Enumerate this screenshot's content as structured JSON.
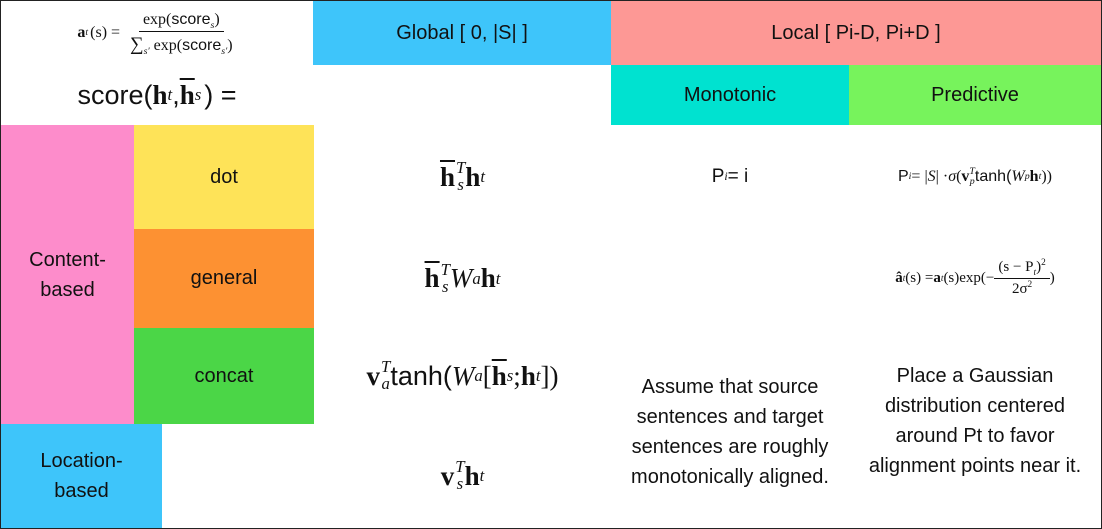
{
  "colors": {
    "global": "#3ec5fa",
    "local": "#fd9895",
    "monotonic": "#00e2d0",
    "predictive": "#77f35c",
    "content": "#fd8ccb",
    "dot": "#fee358",
    "general": "#fd9132",
    "concat": "#4bd647",
    "location": "#3ec5fa"
  },
  "header": {
    "global": "Global [ 0, |S| ]",
    "local": "Local [ Pi-D, Pi+D ]",
    "monotonic": "Monotonic",
    "predictive": "Predictive"
  },
  "formula_topleft": {
    "lhs_a": "a",
    "lhs_sub": "t",
    "lhs_arg": "(s) =",
    "num_exp": "exp(",
    "num_score": "score",
    "num_sub": "s",
    "num_close": ")",
    "den_sum": "∑",
    "den_sum_sub": "s′",
    "den_exp": " exp(",
    "den_score": "score",
    "den_sub": "s′",
    "den_close": ")"
  },
  "score_label": {
    "fn": "score(",
    "h": "h",
    "h_sub": "t",
    "comma": ", ",
    "hbar": "h",
    "hbar_sub": "s",
    "close": ") ="
  },
  "row_groups": {
    "content": "Content-\nbased",
    "location": "Location-\nbased"
  },
  "methods": {
    "dot": "dot",
    "general": "general",
    "concat": "concat"
  },
  "score_formulas": {
    "dot": {
      "hbar": "h",
      "s": "s",
      "T": "T",
      "h": "h",
      "t": "t"
    },
    "general": {
      "hbar": "h",
      "s": "s",
      "T": "T",
      "W": "W",
      "a": "a",
      "h": "h",
      "t": "t"
    },
    "concat": {
      "v": "v",
      "a": "a",
      "T": "T",
      "tanh": "tanh(",
      "W": "W",
      "wa": "a",
      "br": "[",
      "hbar": "h",
      "s": "s",
      "semi": "; ",
      "h": "h",
      "t": "t",
      "close": "])"
    },
    "location": {
      "v": "v",
      "s": "s",
      "T": "T",
      "h": "h",
      "t": "t"
    }
  },
  "monotonic_formula": {
    "P": "P",
    "i_sub": "i",
    "eq": " = i"
  },
  "predictive_formula": {
    "P": "P",
    "i_sub": "i",
    "eq": " = | ",
    "S": "S",
    "mid": " | · ",
    "sigma": "σ",
    "open": " (",
    "v": "v",
    "p": "p",
    "T": "T",
    "tanh": " tanh(",
    "W": "W",
    "wp": "p",
    "h": "h",
    "t": "t",
    "close": "))"
  },
  "gauss_formula": {
    "ahat": "â",
    "t": "t",
    "arg": "(s) = ",
    "a": "a",
    "t2": "t",
    "arg2": "(s)exp(−",
    "num": "(s − P",
    "num_t": "t",
    "num_close": ")",
    "num_sq": "2",
    "den": "2σ",
    "den_sq": "2",
    "close": ")"
  },
  "monotonic_desc": "Assume that source sentences and target sentences are roughly monotonically aligned.",
  "predictive_desc": "Place a Gaussian distribution centered around Pt to favor alignment points near it."
}
